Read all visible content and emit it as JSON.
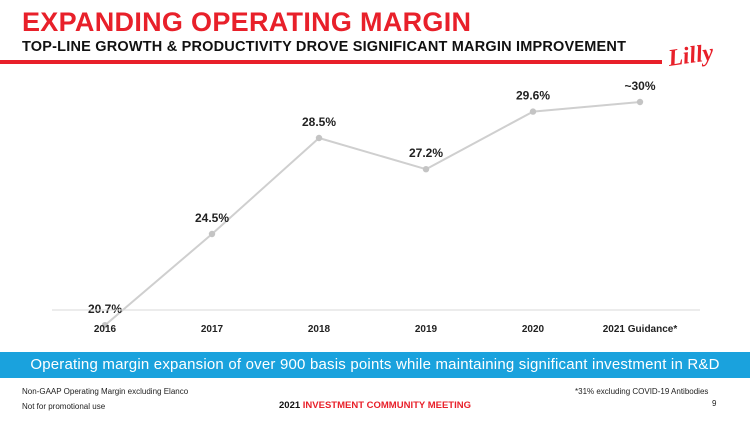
{
  "header": {
    "title": "EXPANDING OPERATING MARGIN",
    "subtitle": "TOP-LINE GROWTH & PRODUCTIVITY DROVE SIGNIFICANT MARGIN IMPROVEMENT",
    "logo_text": "Lilly"
  },
  "colors": {
    "brand_red": "#e8202a",
    "line_gray": "#cfcfcf",
    "point_gray": "#c4c4c4",
    "banner_blue": "#1aa2dd",
    "axis_gray": "#d9d9d9"
  },
  "chart_data": {
    "type": "line",
    "categories": [
      "2016",
      "2017",
      "2018",
      "2019",
      "2020",
      "2021 Guidance*"
    ],
    "values": [
      20.7,
      24.5,
      28.5,
      27.2,
      29.6,
      30
    ],
    "data_labels": [
      "20.7%",
      "24.5%",
      "28.5%",
      "27.2%",
      "29.6%",
      "~30%"
    ],
    "title": "",
    "xlabel": "",
    "ylabel": "",
    "ylim": [
      20,
      31
    ],
    "grid": false,
    "legend": "none"
  },
  "banner": {
    "text": "Operating margin expansion of over 900 basis points while maintaining significant investment in R&D"
  },
  "footnotes": {
    "left_line1": "Non-GAAP Operating Margin excluding Elanco",
    "left_line2": "Not for promotional use",
    "right": "*31% excluding COVID-19 Antibodies"
  },
  "footer": {
    "year": "2021",
    "event": "INVESTMENT COMMUNITY MEETING",
    "page_number": "9"
  }
}
